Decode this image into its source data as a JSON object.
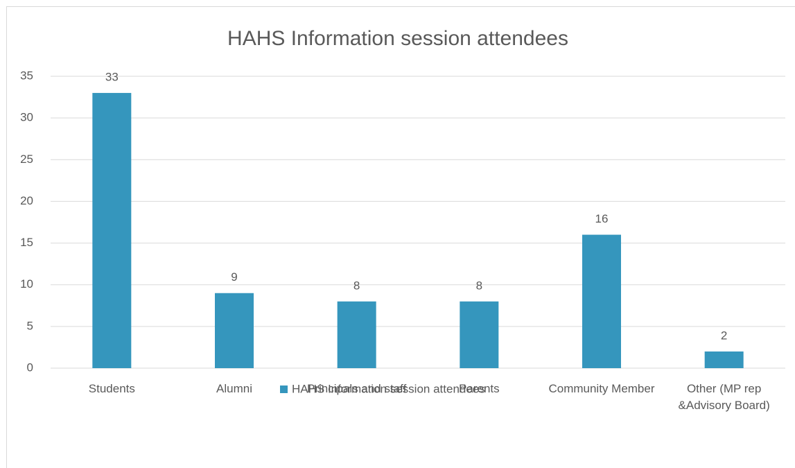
{
  "chart_data": {
    "type": "bar",
    "title": "HAHS Information session attendees",
    "categories": [
      "Students",
      "Alumni",
      "Principals and staff",
      "Parents",
      "Community Member",
      "Other (MP rep &Advisory Board)"
    ],
    "series": [
      {
        "name": "HAHS Information session attendees",
        "color": "#3596bd",
        "values": [
          33,
          9,
          8,
          8,
          16,
          2
        ]
      }
    ],
    "ylim": [
      0,
      35
    ],
    "yticks": [
      0,
      5,
      10,
      15,
      20,
      25,
      30,
      35
    ],
    "grid": true,
    "legend": "bottom"
  }
}
